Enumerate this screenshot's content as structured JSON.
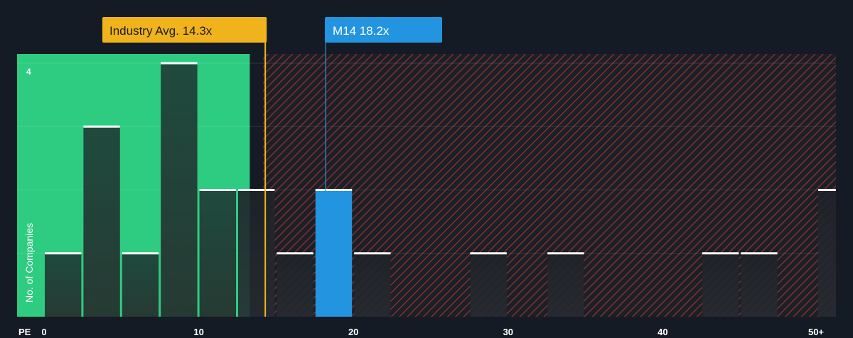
{
  "chart_data": {
    "type": "bar",
    "xlabel": "PE",
    "ylabel": "No. of Companies",
    "x_ticks": [
      {
        "value": 0,
        "label": "0"
      },
      {
        "value": 10,
        "label": "10"
      },
      {
        "value": 20,
        "label": "20"
      },
      {
        "value": 30,
        "label": "30"
      },
      {
        "value": 40,
        "label": "40"
      },
      {
        "value": 50,
        "label": "50+"
      }
    ],
    "y_ticks": [
      {
        "value": 4,
        "label": "4"
      }
    ],
    "xlim": [
      0,
      50
    ],
    "ylim": [
      0,
      4
    ],
    "bin_width": 2.5,
    "bins": [
      {
        "start": 0,
        "count": 1
      },
      {
        "start": 2.5,
        "count": 3
      },
      {
        "start": 5,
        "count": 1
      },
      {
        "start": 7.5,
        "count": 4
      },
      {
        "start": 10,
        "count": 2
      },
      {
        "start": 12.5,
        "count": 2
      },
      {
        "start": 15,
        "count": 1
      },
      {
        "start": 17.5,
        "count": 2,
        "highlight": true
      },
      {
        "start": 20,
        "count": 1
      },
      {
        "start": 27.5,
        "count": 1
      },
      {
        "start": 32.5,
        "count": 1
      },
      {
        "start": 42.5,
        "count": 1
      },
      {
        "start": 45,
        "count": 1
      },
      {
        "start": 50,
        "count": 2
      }
    ],
    "markers": {
      "industry": {
        "label": "Industry Avg. 14.3x",
        "value": 14.3,
        "color": "#f0b31c"
      },
      "company": {
        "label": "M14 18.2x",
        "value": 18.2,
        "color": "#2394e0"
      }
    },
    "zones": {
      "undervalued_color": "#2ecc80",
      "overvalued_color": "#c0392b"
    },
    "bar_color": "#1e4a3c",
    "highlight_bar_color": "#2394e0",
    "grid": true
  }
}
